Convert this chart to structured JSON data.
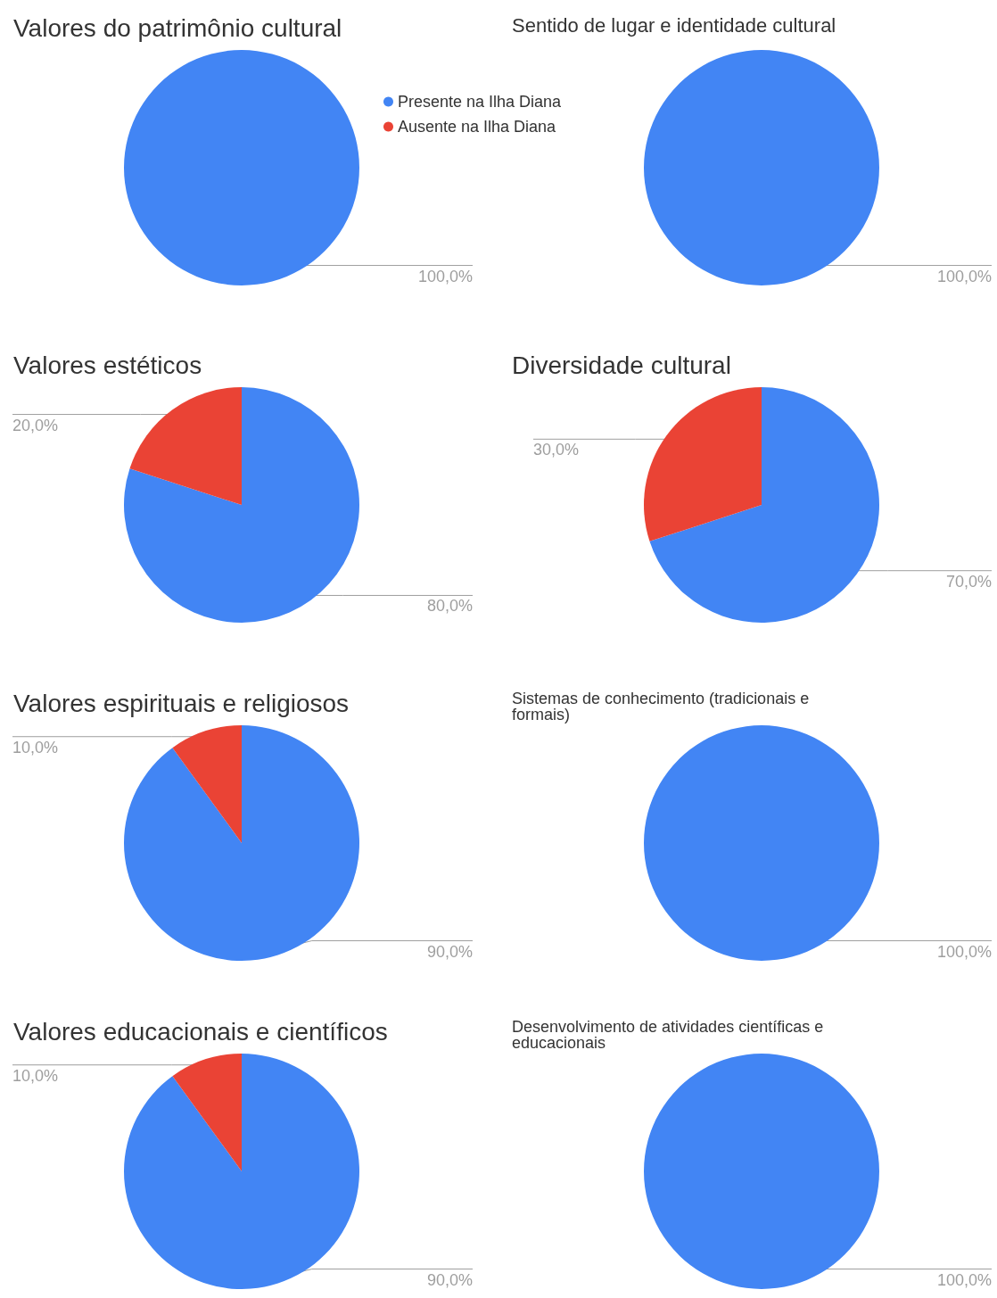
{
  "chart_data": [
    {
      "type": "pie",
      "title": "Valores do patrimônio cultural",
      "categories": [
        "Presente na Ilha Diana",
        "Ausente na Ilha Diana"
      ],
      "values": [
        100,
        0
      ],
      "colors": [
        "#4285f4",
        "#ea4335"
      ],
      "value_labels": [
        "100,0%",
        null
      ],
      "legend": "right"
    },
    {
      "type": "pie",
      "title": "Sentido de lugar e identidade cultural",
      "categories": [
        null,
        null
      ],
      "values": [
        100,
        0
      ],
      "colors": [
        "#4285f4",
        "#ea4335"
      ],
      "value_labels": [
        "100,0%",
        null
      ]
    },
    {
      "type": "pie",
      "title": "Valores estéticos",
      "categories": [
        null,
        null
      ],
      "values": [
        80,
        20
      ],
      "colors": [
        "#4285f4",
        "#ea4335"
      ],
      "value_labels": [
        "80,0%",
        "20,0%"
      ]
    },
    {
      "type": "pie",
      "title": "Diversidade cultural",
      "categories": [
        null,
        null
      ],
      "values": [
        70,
        30
      ],
      "colors": [
        "#4285f4",
        "#ea4335"
      ],
      "value_labels": [
        "70,0%",
        "30,0%"
      ]
    },
    {
      "type": "pie",
      "title": "Valores espirituais e religiosos",
      "categories": [
        null,
        null
      ],
      "values": [
        90,
        10
      ],
      "colors": [
        "#4285f4",
        "#ea4335"
      ],
      "value_labels": [
        "90,0%",
        "10,0%"
      ]
    },
    {
      "type": "pie",
      "title": "Sistemas de conhecimento (tradicionais e formais)",
      "categories": [
        null,
        null
      ],
      "values": [
        100,
        0
      ],
      "colors": [
        "#4285f4",
        "#ea4335"
      ],
      "value_labels": [
        "100,0%",
        null
      ]
    },
    {
      "type": "pie",
      "title": "Valores educacionais e científicos",
      "categories": [
        null,
        null
      ],
      "values": [
        90,
        10
      ],
      "colors": [
        "#4285f4",
        "#ea4335"
      ],
      "value_labels": [
        "90,0%",
        "10,0%"
      ]
    },
    {
      "type": "pie",
      "title": "Desenvolvimento de atividades científicas e educacionais",
      "categories": [
        null,
        null
      ],
      "values": [
        100,
        0
      ],
      "colors": [
        "#4285f4",
        "#ea4335"
      ],
      "value_labels": [
        "100,0%",
        null
      ]
    }
  ]
}
